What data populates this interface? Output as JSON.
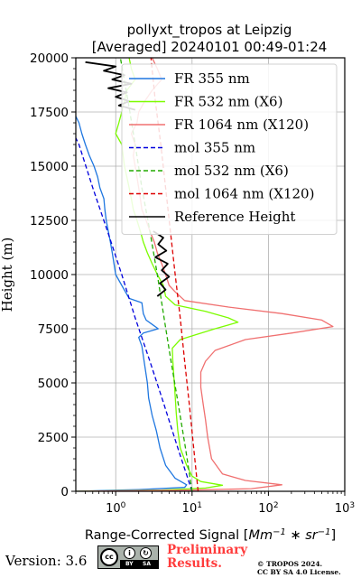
{
  "chart_data": {
    "type": "line",
    "title": "pollyxt_tropos at Leipzig",
    "subtitle": "[Averaged] 20240101 00:49-01:24",
    "xlabel_prefix": "Range-Corrected Signal [",
    "xlabel_unit": "Mm^-1 * sr^-1",
    "xlabel_suffix": "]",
    "ylabel": "Height (m)",
    "xscale": "log",
    "xlim": [
      0.3,
      1000
    ],
    "ylim": [
      0,
      20000
    ],
    "x_ticks": [
      1,
      10,
      100,
      1000
    ],
    "x_tick_labels": [
      "10^0",
      "10^1",
      "10^2",
      "10^3"
    ],
    "y_ticks": [
      0,
      2500,
      5000,
      7500,
      10000,
      12500,
      15000,
      17500,
      20000
    ],
    "y_tick_labels": [
      "0",
      "2500",
      "5000",
      "7500",
      "10000",
      "12500",
      "15000",
      "17500",
      "20000"
    ],
    "grid": true,
    "legend_position": "top-right",
    "series": [
      {
        "name": "FR 355 nm",
        "color": "#1f77e0",
        "style": "solid",
        "points": [
          [
            0.3,
            0
          ],
          [
            2,
            80
          ],
          [
            8,
            180
          ],
          [
            8.5,
            300
          ],
          [
            6,
            600
          ],
          [
            4.5,
            1200
          ],
          [
            3.8,
            2000
          ],
          [
            3.4,
            2800
          ],
          [
            3.0,
            3500
          ],
          [
            2.7,
            4300
          ],
          [
            2.6,
            5000
          ],
          [
            2.4,
            5800
          ],
          [
            2.2,
            6700
          ],
          [
            2.0,
            7100
          ],
          [
            2.3,
            7300
          ],
          [
            3.6,
            7500
          ],
          [
            3.0,
            7700
          ],
          [
            2.5,
            7900
          ],
          [
            2.3,
            8200
          ],
          [
            2.2,
            8700
          ],
          [
            1.5,
            8900
          ],
          [
            1.2,
            9500
          ],
          [
            1.0,
            10000
          ],
          [
            0.95,
            10500
          ],
          [
            0.9,
            11000
          ],
          [
            0.85,
            11500
          ],
          [
            0.8,
            12000
          ],
          [
            0.75,
            12500
          ],
          [
            0.72,
            13000
          ],
          [
            0.7,
            13500
          ],
          [
            0.62,
            14000
          ],
          [
            0.58,
            14500
          ],
          [
            0.52,
            15000
          ],
          [
            0.45,
            15500
          ],
          [
            0.4,
            16000
          ],
          [
            0.36,
            16500
          ],
          [
            0.33,
            17000
          ],
          [
            0.3,
            17300
          ]
        ]
      },
      {
        "name": "FR 532 nm (X6)",
        "color": "#7cfc00",
        "style": "solid",
        "points": [
          [
            0.3,
            0
          ],
          [
            4,
            60
          ],
          [
            15,
            150
          ],
          [
            25,
            280
          ],
          [
            13,
            450
          ],
          [
            10,
            700
          ],
          [
            8.5,
            1200
          ],
          [
            7,
            2000
          ],
          [
            6.5,
            2800
          ],
          [
            6.2,
            3600
          ],
          [
            6.0,
            4400
          ],
          [
            5.8,
            5200
          ],
          [
            5.6,
            6000
          ],
          [
            5.5,
            6600
          ],
          [
            7,
            7000
          ],
          [
            20,
            7500
          ],
          [
            40,
            7800
          ],
          [
            30,
            8000
          ],
          [
            15,
            8300
          ],
          [
            6,
            8600
          ],
          [
            4.5,
            9000
          ],
          [
            4.2,
            9500
          ],
          [
            3.5,
            10000
          ],
          [
            3.0,
            10500
          ],
          [
            2.6,
            11000
          ],
          [
            2.3,
            11500
          ],
          [
            2.1,
            12000
          ],
          [
            1.9,
            12500
          ],
          [
            1.7,
            13000
          ],
          [
            1.6,
            13500
          ],
          [
            1.5,
            14000
          ],
          [
            1.4,
            14500
          ],
          [
            1.3,
            15000
          ],
          [
            1.25,
            15500
          ],
          [
            1.2,
            16000
          ],
          [
            1.0,
            16500
          ],
          [
            1.1,
            17000
          ],
          [
            1.2,
            17500
          ],
          [
            1.3,
            18000
          ],
          [
            1.4,
            18500
          ],
          [
            1.8,
            19000
          ],
          [
            1.6,
            19500
          ],
          [
            1.5,
            20000
          ]
        ]
      },
      {
        "name": "FR 1064 nm (X120)",
        "color": "#f07070",
        "style": "solid",
        "points": [
          [
            0.3,
            0
          ],
          [
            8,
            50
          ],
          [
            60,
            120
          ],
          [
            150,
            300
          ],
          [
            50,
            500
          ],
          [
            25,
            800
          ],
          [
            18,
            1500
          ],
          [
            16,
            2500
          ],
          [
            15,
            3300
          ],
          [
            14,
            4000
          ],
          [
            13,
            4800
          ],
          [
            13,
            5500
          ],
          [
            15,
            6000
          ],
          [
            20,
            6500
          ],
          [
            50,
            7000
          ],
          [
            200,
            7300
          ],
          [
            700,
            7600
          ],
          [
            500,
            7900
          ],
          [
            150,
            8200
          ],
          [
            30,
            8500
          ],
          [
            8,
            8800
          ],
          [
            6,
            9200
          ],
          [
            5,
            9500
          ],
          [
            4.5,
            10000
          ],
          [
            4,
            10500
          ],
          [
            3.5,
            11000
          ],
          [
            3.2,
            11500
          ],
          [
            2.8,
            12000
          ],
          [
            2.5,
            12500
          ],
          [
            2.2,
            13000
          ],
          [
            2.1,
            13500
          ],
          [
            2.0,
            14000
          ],
          [
            1.9,
            14500
          ],
          [
            1.8,
            15000
          ],
          [
            1.7,
            15500
          ],
          [
            1.8,
            16000
          ],
          [
            1.6,
            16500
          ],
          [
            1.9,
            17000
          ],
          [
            2.0,
            17500
          ],
          [
            2.4,
            18000
          ],
          [
            3,
            18500
          ],
          [
            4,
            19000
          ],
          [
            3.5,
            19500
          ],
          [
            3,
            20000
          ]
        ]
      },
      {
        "name": "mol 355 nm",
        "color": "#0000dd",
        "style": "dashed",
        "points": [
          [
            10,
            0
          ],
          [
            6.5,
            2000
          ],
          [
            4.3,
            4000
          ],
          [
            2.8,
            6000
          ],
          [
            1.8,
            8000
          ],
          [
            1.2,
            10000
          ],
          [
            0.78,
            12000
          ],
          [
            0.5,
            14000
          ],
          [
            0.33,
            16000
          ],
          [
            0.3,
            16300
          ]
        ]
      },
      {
        "name": "mol 532 nm (X6)",
        "color": "#22aa00",
        "style": "dashed",
        "points": [
          [
            10,
            0
          ],
          [
            8.2,
            2000
          ],
          [
            6.6,
            4000
          ],
          [
            5.3,
            6000
          ],
          [
            4.3,
            8000
          ],
          [
            3.5,
            10000
          ],
          [
            2.8,
            12000
          ],
          [
            2.2,
            14000
          ],
          [
            1.8,
            16000
          ],
          [
            1.45,
            18000
          ],
          [
            1.15,
            20000
          ]
        ]
      },
      {
        "name": "mol 1064 nm (X120)",
        "color": "#dd0000",
        "style": "dashed",
        "points": [
          [
            12,
            0
          ],
          [
            10.5,
            2000
          ],
          [
            9.2,
            4000
          ],
          [
            8.0,
            6000
          ],
          [
            7.0,
            8000
          ],
          [
            6.0,
            10000
          ],
          [
            5.2,
            12000
          ],
          [
            4.5,
            14000
          ],
          [
            3.9,
            16000
          ],
          [
            3.3,
            18000
          ],
          [
            2.9,
            20000
          ]
        ]
      },
      {
        "name": "Reference Height",
        "color": "#000000",
        "style": "solid",
        "points": [
          [
            3.5,
            9000
          ],
          [
            4.5,
            9300
          ],
          [
            3.8,
            9600
          ],
          [
            5,
            9900
          ],
          [
            4,
            10200
          ],
          [
            4.8,
            10500
          ],
          [
            3.3,
            10800
          ],
          [
            4.6,
            11100
          ],
          [
            3.6,
            11400
          ],
          [
            4.2,
            11700
          ],
          [
            3.1,
            12000
          ]
        ]
      },
      {
        "name": "",
        "color": "#000000",
        "style": "solid",
        "points": [
          [
            0.4,
            19800
          ],
          [
            1.0,
            19600
          ],
          [
            0.7,
            19400
          ],
          [
            1.3,
            19200
          ],
          [
            0.9,
            19000
          ],
          [
            1.6,
            18800
          ],
          [
            0.8,
            18600
          ],
          [
            1.4,
            18400
          ],
          [
            1.0,
            18200
          ],
          [
            1.5,
            18000
          ],
          [
            1.1,
            17800
          ],
          [
            1.8,
            17600
          ]
        ]
      }
    ]
  },
  "footer": {
    "version": "Version: 3.6",
    "cc_text": "cc",
    "cc_by": "BY",
    "cc_sa": "SA",
    "preliminary_line1": "Preliminary",
    "preliminary_line2": "Results.",
    "copyright_line1": "© TROPOS 2024.",
    "copyright_line2": "CC BY SA 4.0 License."
  }
}
